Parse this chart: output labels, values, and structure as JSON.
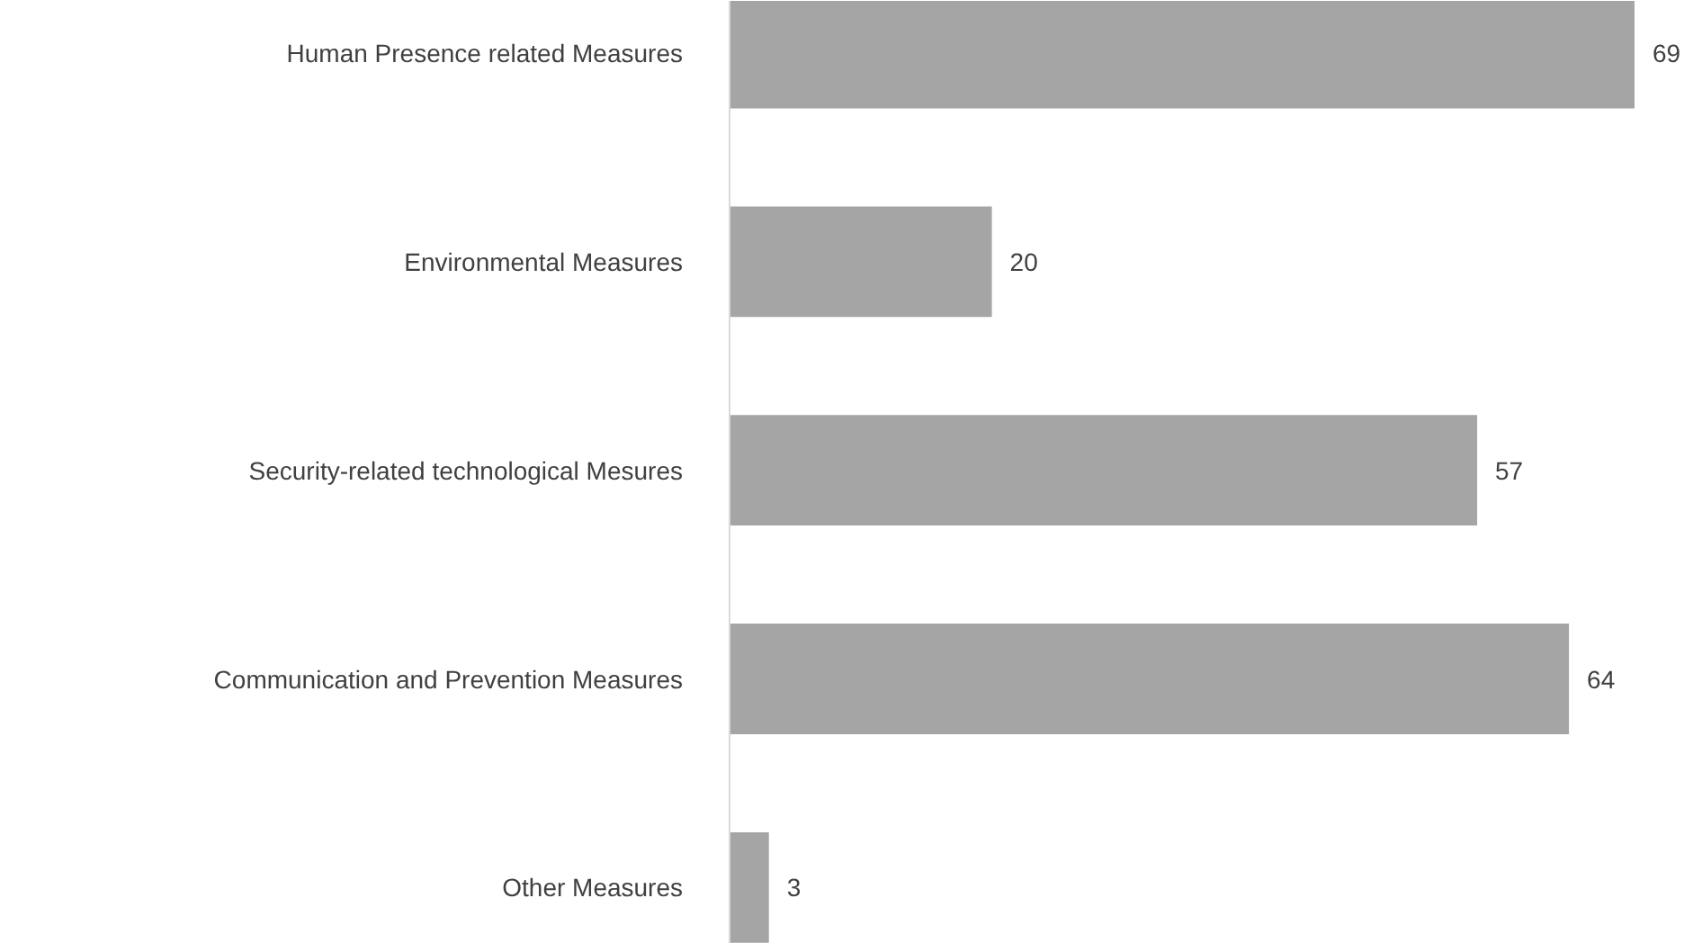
{
  "chart_data": {
    "type": "bar",
    "orientation": "horizontal",
    "categories": [
      "Human Presence related Measures",
      "Environmental Measures",
      "Security-related technological Mesures",
      "Communication and Prevention Measures",
      "Other Measures"
    ],
    "values": [
      69,
      20,
      57,
      64,
      3
    ],
    "color": "#a5a5a5",
    "data_labels": true
  }
}
